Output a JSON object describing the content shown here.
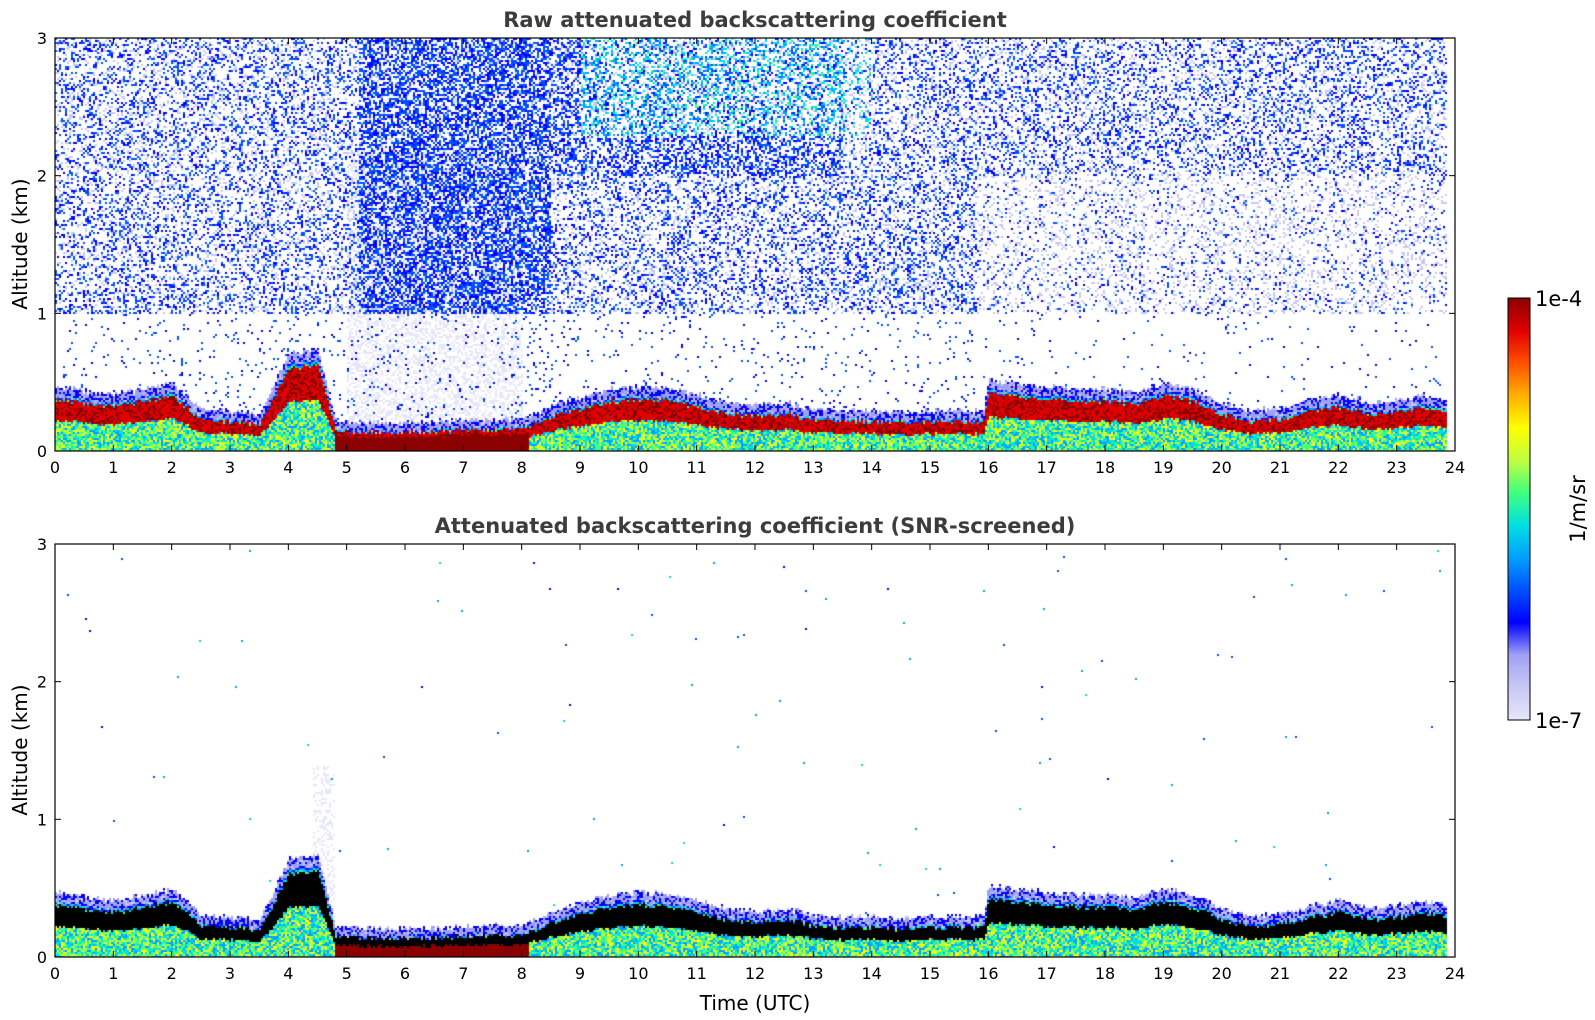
{
  "chart_data": [
    {
      "type": "heatmap",
      "title": "Raw attenuated backscattering coefficient",
      "xlabel": "",
      "ylabel": "Altitude (km)",
      "xlim": [
        0,
        24
      ],
      "ylim": [
        0,
        3
      ],
      "xticks": [
        0,
        1,
        2,
        3,
        4,
        5,
        6,
        7,
        8,
        9,
        10,
        11,
        12,
        13,
        14,
        15,
        16,
        17,
        18,
        19,
        20,
        21,
        22,
        23,
        24
      ],
      "yticks": [
        0,
        1,
        2,
        3
      ],
      "grid": false,
      "screening": "raw",
      "layer_top_km": {
        "x": [
          0,
          0.5,
          1,
          1.5,
          2,
          2.5,
          3,
          3.5,
          4,
          4.5,
          4.8,
          5,
          6,
          7,
          8,
          8.5,
          9,
          9.5,
          10,
          10.5,
          11,
          11.5,
          12,
          12.5,
          13,
          13.5,
          14,
          14.5,
          15,
          15.5,
          15.9,
          16,
          16.5,
          17,
          17.5,
          18,
          18.5,
          19,
          19.5,
          20,
          20.5,
          21,
          21.5,
          22,
          22.5,
          23,
          23.5,
          23.8
        ],
        "y": [
          0.42,
          0.38,
          0.36,
          0.4,
          0.44,
          0.25,
          0.24,
          0.22,
          0.66,
          0.68,
          0.18,
          0.16,
          0.15,
          0.17,
          0.18,
          0.28,
          0.34,
          0.4,
          0.42,
          0.4,
          0.36,
          0.3,
          0.28,
          0.3,
          0.25,
          0.24,
          0.24,
          0.23,
          0.24,
          0.24,
          0.24,
          0.46,
          0.44,
          0.42,
          0.4,
          0.4,
          0.38,
          0.44,
          0.4,
          0.3,
          0.24,
          0.26,
          0.32,
          0.36,
          0.3,
          0.32,
          0.35,
          0.33
        ]
      },
      "colorbar": {
        "min_label": "1e-7",
        "max_label": "1e-4",
        "label": "1/m/sr",
        "scale": "log",
        "min": 1e-07,
        "max": 0.0001
      }
    },
    {
      "type": "heatmap",
      "title": "Attenuated backscattering coefficient (SNR-screened)",
      "xlabel": "Time (UTC)",
      "ylabel": "Altitude (km)",
      "xlim": [
        0,
        24
      ],
      "ylim": [
        0,
        3
      ],
      "xticks": [
        0,
        1,
        2,
        3,
        4,
        5,
        6,
        7,
        8,
        9,
        10,
        11,
        12,
        13,
        14,
        15,
        16,
        17,
        18,
        19,
        20,
        21,
        22,
        23,
        24
      ],
      "yticks": [
        0,
        1,
        2,
        3
      ],
      "grid": false,
      "screening": "snr",
      "layer_top_km": {
        "x": [
          0,
          0.5,
          1,
          1.5,
          2,
          2.5,
          3,
          3.5,
          4,
          4.5,
          4.8,
          5,
          6,
          7,
          8,
          8.5,
          9,
          9.5,
          10,
          10.5,
          11,
          11.5,
          12,
          12.5,
          13,
          13.5,
          14,
          14.5,
          15,
          15.5,
          15.9,
          16,
          16.5,
          17,
          17.5,
          18,
          18.5,
          19,
          19.5,
          20,
          20.5,
          21,
          21.5,
          22,
          22.5,
          23,
          23.5,
          23.8
        ],
        "y": [
          0.42,
          0.38,
          0.36,
          0.4,
          0.44,
          0.25,
          0.24,
          0.22,
          0.66,
          0.68,
          0.18,
          0.16,
          0.15,
          0.17,
          0.18,
          0.28,
          0.34,
          0.4,
          0.42,
          0.4,
          0.36,
          0.3,
          0.28,
          0.3,
          0.25,
          0.24,
          0.24,
          0.23,
          0.24,
          0.24,
          0.24,
          0.46,
          0.44,
          0.42,
          0.4,
          0.4,
          0.38,
          0.44,
          0.4,
          0.3,
          0.24,
          0.26,
          0.32,
          0.36,
          0.3,
          0.32,
          0.35,
          0.33
        ]
      }
    }
  ],
  "colors": {
    "colormap": [
      "#e6e6fa",
      "#c8c8f5",
      "#a0a0f5",
      "#0000ff",
      "#0050ff",
      "#00a0ff",
      "#00e0e0",
      "#40ff80",
      "#c0ff40",
      "#ffff00",
      "#ffb000",
      "#ff5000",
      "#e00000",
      "#8b0000"
    ],
    "background": "#ffffff",
    "screened_peak": "#000000"
  }
}
